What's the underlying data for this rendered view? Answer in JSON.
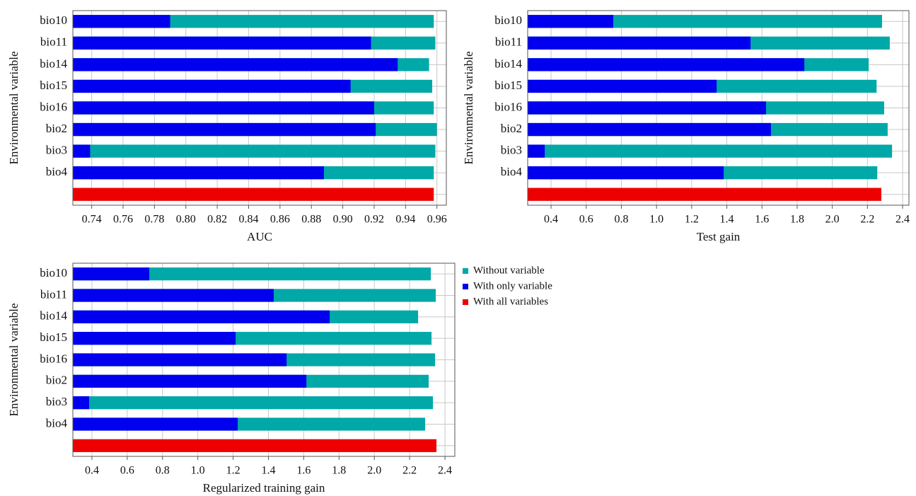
{
  "legend": {
    "items": [
      {
        "name": "Without variable",
        "color": "#00a8a8"
      },
      {
        "name": "With only variable",
        "color": "#0000ee"
      },
      {
        "name": "With all variables",
        "color": "#ee0000"
      }
    ]
  },
  "chart_data": [
    {
      "type": "bar",
      "orientation": "horizontal",
      "xlabel": "AUC",
      "ylabel": "Environmental variable",
      "categories": [
        "bio10",
        "bio11",
        "bio14",
        "bio15",
        "bio16",
        "bio2",
        "bio3",
        "bio4",
        null
      ],
      "series": [
        {
          "values": [
            0.958,
            0.959,
            0.955,
            0.957,
            0.958,
            0.96,
            0.959,
            0.958,
            null
          ]
        },
        {
          "values": [
            0.79,
            0.918,
            0.935,
            0.905,
            0.92,
            0.921,
            0.739,
            0.888,
            null
          ]
        },
        {
          "values": [
            null,
            null,
            null,
            null,
            null,
            null,
            null,
            null,
            0.958
          ]
        }
      ],
      "xlim": [
        0.728,
        0.966
      ],
      "xticks": [
        0.74,
        0.76,
        0.78,
        {
          "value": 0.8,
          "label": "0.80"
        },
        0.82,
        0.84,
        0.86,
        0.88,
        {
          "value": 0.9,
          "label": "0.90"
        },
        0.92,
        0.94,
        0.96
      ],
      "grid": true
    },
    {
      "type": "bar",
      "orientation": "horizontal",
      "xlabel": "Test gain",
      "ylabel": "Environmental variable",
      "categories": [
        "bio10",
        "bio11",
        "bio14",
        "bio15",
        "bio16",
        "bio2",
        "bio3",
        "bio4",
        null
      ],
      "series": [
        {
          "values": [
            2.283,
            2.327,
            2.207,
            2.252,
            2.295,
            2.315,
            2.34,
            2.256,
            null
          ]
        },
        {
          "values": [
            0.754,
            1.535,
            1.841,
            1.342,
            1.623,
            1.651,
            0.364,
            1.382,
            null
          ]
        },
        {
          "values": [
            null,
            null,
            null,
            null,
            null,
            null,
            null,
            null,
            2.279
          ]
        }
      ],
      "xlim": [
        0.267,
        2.436
      ],
      "xticks": [
        0.4,
        0.6,
        0.8,
        {
          "value": 1,
          "label": "1.0"
        },
        1.2,
        1.4,
        1.6,
        1.8,
        {
          "value": 2,
          "label": "2.0"
        },
        2.2,
        2.4
      ],
      "grid": true
    },
    {
      "type": "bar",
      "orientation": "horizontal",
      "xlabel": "Regularized training gain",
      "ylabel": "Environmental variable",
      "categories": [
        "bio10",
        "bio11",
        "bio14",
        "bio15",
        "bio16",
        "bio2",
        "bio3",
        "bio4",
        null
      ],
      "series": [
        {
          "values": [
            2.32,
            2.348,
            2.248,
            2.324,
            2.344,
            2.308,
            2.332,
            2.288,
            null
          ]
        },
        {
          "values": [
            0.725,
            1.43,
            1.747,
            1.214,
            1.503,
            1.615,
            0.384,
            1.226,
            null
          ]
        },
        {
          "values": [
            null,
            null,
            null,
            null,
            null,
            null,
            null,
            null,
            2.352
          ]
        }
      ],
      "xlim": [
        0.292,
        2.456
      ],
      "xticks": [
        0.4,
        0.6,
        0.8,
        {
          "value": 1,
          "label": "1.0"
        },
        1.2,
        1.4,
        1.6,
        1.8,
        {
          "value": 2,
          "label": "2.0"
        },
        2.2,
        2.4
      ],
      "grid": true
    }
  ]
}
